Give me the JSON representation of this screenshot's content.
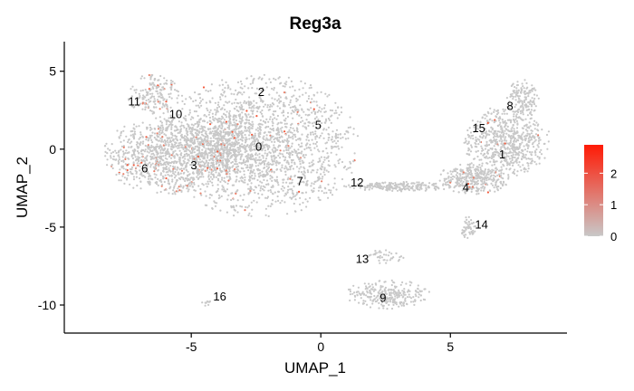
{
  "chart_data": {
    "type": "scatter",
    "title": "Reg3a",
    "xlabel": "UMAP_1",
    "ylabel": "UMAP_2",
    "xlim": [
      -9.9,
      9.5
    ],
    "ylim": [
      -11.8,
      6.9
    ],
    "x_ticks": [
      -5,
      0,
      5
    ],
    "y_ticks": [
      -10,
      -5,
      0,
      5
    ],
    "grid": false,
    "legend": {
      "position": "right",
      "type": "colorbar",
      "min": 0,
      "max": 2.9,
      "ticks": [
        0,
        1,
        2
      ],
      "colors": [
        "#c8c8c8",
        "#ff1a05"
      ]
    },
    "point_color_low": "#c8c8c8",
    "point_color_high": "#ff1a05",
    "clusters": [
      {
        "label": "0",
        "x": -2.4,
        "y": 0.1
      },
      {
        "label": "1",
        "x": 7.0,
        "y": -0.4
      },
      {
        "label": "2",
        "x": -2.3,
        "y": 3.6
      },
      {
        "label": "3",
        "x": -4.9,
        "y": -1.1
      },
      {
        "label": "4",
        "x": 5.6,
        "y": -2.5
      },
      {
        "label": "5",
        "x": -0.1,
        "y": 1.5
      },
      {
        "label": "6",
        "x": -6.8,
        "y": -1.3
      },
      {
        "label": "7",
        "x": -0.8,
        "y": -2.1
      },
      {
        "label": "8",
        "x": 7.3,
        "y": 2.7
      },
      {
        "label": "9",
        "x": 2.4,
        "y": -9.6
      },
      {
        "label": "10",
        "x": -5.6,
        "y": 2.2
      },
      {
        "label": "11",
        "x": -7.2,
        "y": 3.0
      },
      {
        "label": "12",
        "x": 1.4,
        "y": -2.2
      },
      {
        "label": "13",
        "x": 1.6,
        "y": -7.1
      },
      {
        "label": "14",
        "x": 6.2,
        "y": -4.9
      },
      {
        "label": "15",
        "x": 6.1,
        "y": 1.3
      },
      {
        "label": "16",
        "x": -3.9,
        "y": -9.5
      }
    ],
    "regions": [
      {
        "cx": -2.4,
        "cy": 0.2,
        "rx": 3.7,
        "ry": 4.4,
        "n": 1900,
        "expr": 0.02
      },
      {
        "cx": -6.0,
        "cy": -0.4,
        "rx": 2.3,
        "ry": 2.4,
        "n": 900,
        "expr": 0.05
      },
      {
        "cx": -6.4,
        "cy": 3.5,
        "rx": 1.0,
        "ry": 1.3,
        "n": 180,
        "expr": 0.12
      },
      {
        "cx": -3.8,
        "cy": 0.3,
        "rx": 1.6,
        "ry": 2.0,
        "n": 400,
        "expr": 0.03
      },
      {
        "cx": 7.2,
        "cy": 0.5,
        "rx": 1.6,
        "ry": 2.2,
        "n": 650,
        "expr": 0.02
      },
      {
        "cx": 5.9,
        "cy": -1.9,
        "rx": 1.3,
        "ry": 1.0,
        "n": 350,
        "expr": 0.04
      },
      {
        "cx": 7.8,
        "cy": 3.2,
        "rx": 0.6,
        "ry": 1.2,
        "n": 150,
        "expr": 0.0
      },
      {
        "cx": 2.6,
        "cy": -9.3,
        "rx": 1.6,
        "ry": 0.9,
        "n": 280,
        "expr": 0.0
      },
      {
        "cx": 3.0,
        "cy": -2.4,
        "rx": 2.1,
        "ry": 0.3,
        "n": 220,
        "expr": 0.0
      },
      {
        "cx": 5.7,
        "cy": -5.0,
        "rx": 0.3,
        "ry": 0.8,
        "n": 50,
        "expr": 0.0
      },
      {
        "cx": 2.4,
        "cy": -6.9,
        "rx": 0.8,
        "ry": 0.4,
        "n": 40,
        "expr": 0.0
      },
      {
        "cx": -4.4,
        "cy": -9.9,
        "rx": 0.2,
        "ry": 0.2,
        "n": 10,
        "expr": 0.0
      }
    ],
    "random_seed": 7
  }
}
